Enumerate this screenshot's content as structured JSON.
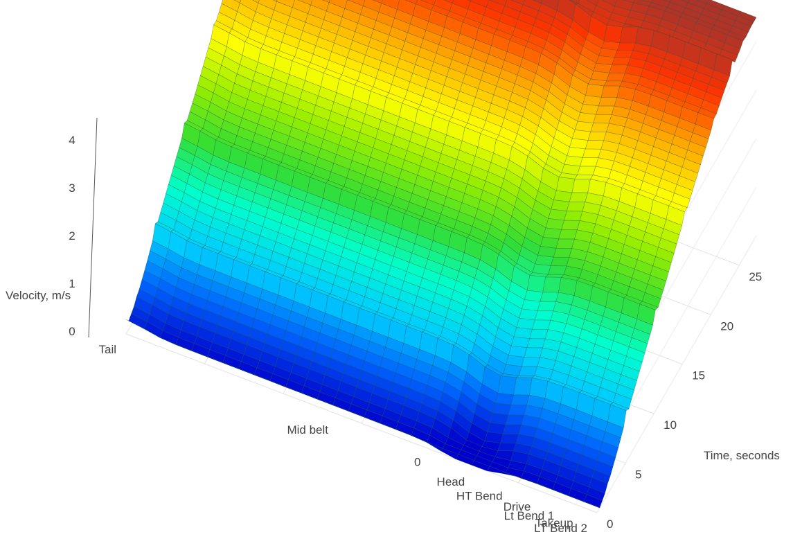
{
  "chart_data": {
    "type": "surface3d",
    "title": "",
    "zlabel": "Velocity, m/s",
    "ylabel": "Time, seconds",
    "xlabel": "",
    "z_ticks": [
      0,
      1,
      2,
      3,
      4
    ],
    "y_ticks": [
      0,
      5,
      10,
      15,
      20,
      25
    ],
    "x_ticks": [
      0
    ],
    "x_categories": [
      "Tail",
      "Mid belt",
      "Head",
      "HT Bend",
      "Drive",
      "Lt Bend 1",
      "Takeup",
      "LT Bend 2"
    ],
    "x_category_positions": [
      0.0,
      0.45,
      0.74,
      0.82,
      0.88,
      0.93,
      0.97,
      1.0
    ],
    "zlim": [
      0,
      4.6
    ],
    "ylim": [
      0,
      28
    ],
    "grid": true,
    "colorscale": [
      "#0000cc",
      "#0066ff",
      "#00ccff",
      "#00ffcc",
      "#33dd33",
      "#99ee00",
      "#ffff00",
      "#ffaa00",
      "#ff3300",
      "#993333"
    ],
    "surface_velocity_by_time": {
      "times": [
        0,
        1.7,
        3.4,
        5.1,
        6.8,
        8.5,
        10.2,
        11.9,
        13.6,
        15.3,
        17.0,
        18.7,
        20.4,
        22.1,
        23.8,
        25.5,
        27.2
      ],
      "velocity": [
        0.0,
        0.2,
        0.55,
        0.95,
        1.3,
        1.65,
        2.0,
        2.3,
        2.65,
        3.0,
        3.3,
        3.6,
        3.9,
        4.15,
        4.35,
        4.5,
        4.55
      ]
    }
  }
}
